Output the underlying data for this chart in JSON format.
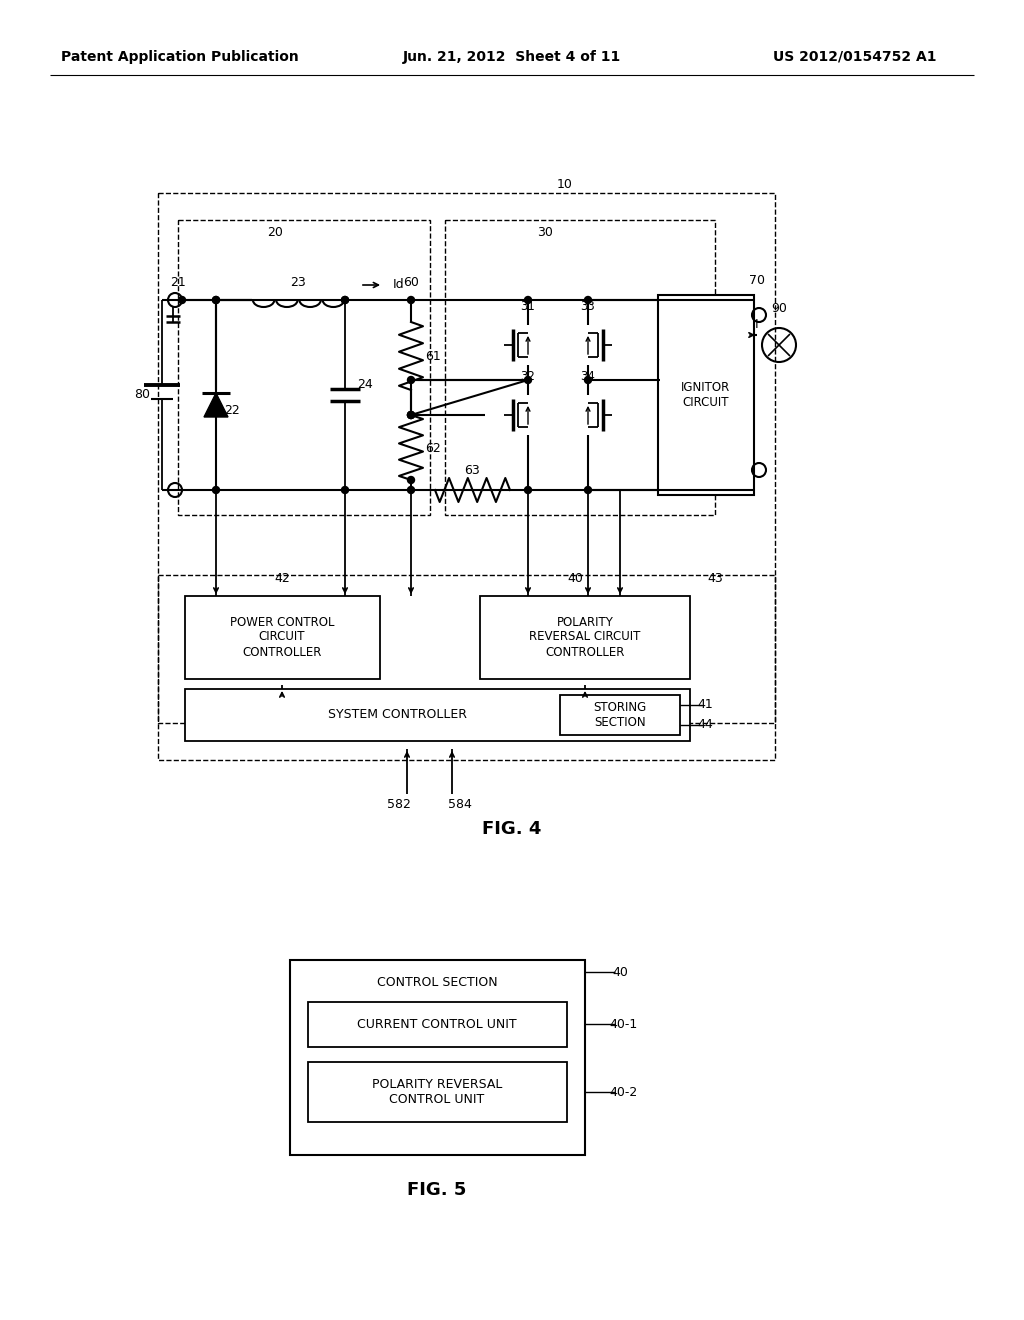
{
  "bg_color": "#ffffff",
  "header_left": "Patent Application Publication",
  "header_center": "Jun. 21, 2012  Sheet 4 of 11",
  "header_right": "US 2012/0154752 A1",
  "fig4_label": "FIG. 4",
  "fig5_label": "FIG. 5"
}
